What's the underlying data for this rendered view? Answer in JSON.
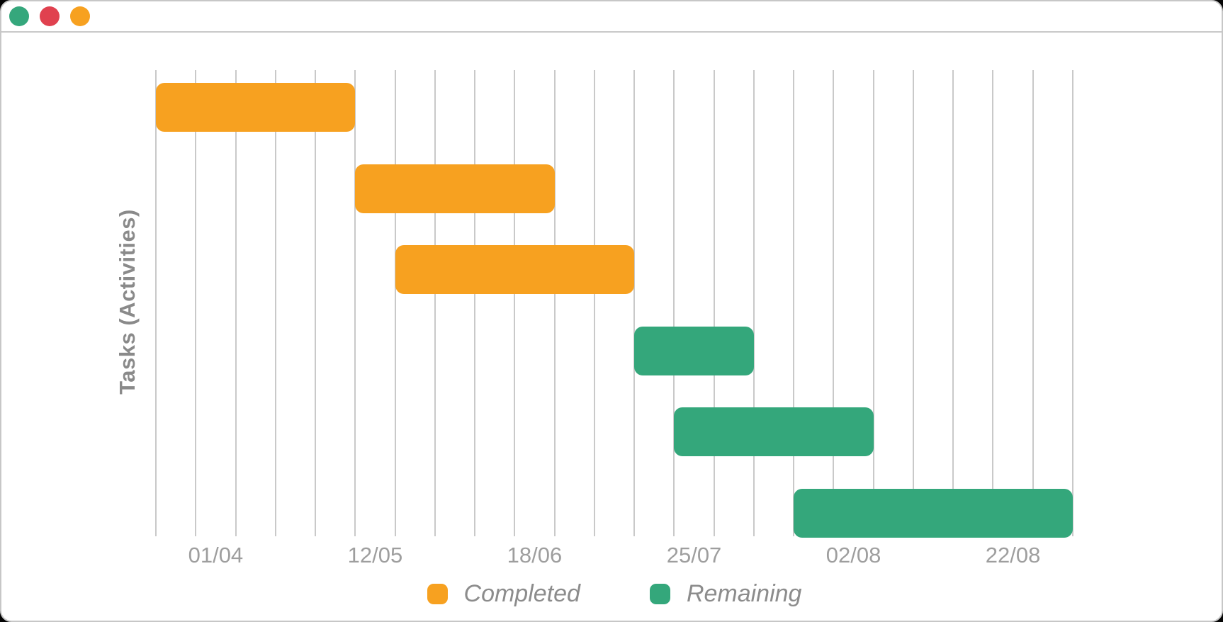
{
  "window": {
    "traffic_lights": [
      {
        "name": "green",
        "color": "#35a77c"
      },
      {
        "name": "red",
        "color": "#e0414f"
      },
      {
        "name": "orange",
        "color": "#f7a120"
      }
    ]
  },
  "chart_data": {
    "type": "bar",
    "subtype": "gantt",
    "title": "",
    "xlabel": "",
    "ylabel": "Tasks (Activities)",
    "xlim": [
      0,
      23
    ],
    "axis_units": "vertical gridline index (24 evenly spaced gridlines, 0-23)",
    "gridline_count": 24,
    "grid": "vertical-only",
    "x_tick_labels": [
      "01/04",
      "12/05",
      "18/06",
      "25/07",
      "02/08",
      "22/08"
    ],
    "x_tick_positions_units": [
      1.5,
      5.5,
      9.5,
      13.5,
      17.5,
      21.5
    ],
    "tasks": [
      {
        "row": 1,
        "series": "Completed",
        "start": 0,
        "end": 5
      },
      {
        "row": 2,
        "series": "Completed",
        "start": 5,
        "end": 10
      },
      {
        "row": 3,
        "series": "Completed",
        "start": 6,
        "end": 12
      },
      {
        "row": 4,
        "series": "Remaining",
        "start": 12,
        "end": 15
      },
      {
        "row": 5,
        "series": "Remaining",
        "start": 13,
        "end": 18
      },
      {
        "row": 6,
        "series": "Remaining",
        "start": 16,
        "end": 23
      }
    ],
    "series": [
      {
        "name": "Completed",
        "color": "#f7a120"
      },
      {
        "name": "Remaining",
        "color": "#34a77b"
      }
    ],
    "legend": {
      "position": "bottom-center",
      "items": [
        {
          "label": "Completed",
          "color": "#f7a120"
        },
        {
          "label": "Remaining",
          "color": "#34a77b"
        }
      ]
    },
    "colors": {
      "gridline": "#c9c9c9",
      "axis_tick_text": "#9e9e9e",
      "y_title_text": "#8a8a8a",
      "legend_text": "#8c8c8c",
      "background": "#ffffff",
      "window_border": "#c7c7c7"
    }
  }
}
